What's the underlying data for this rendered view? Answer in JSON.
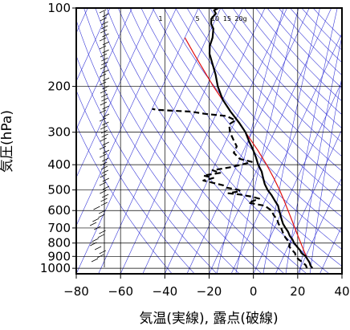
{
  "chart_data": {
    "type": "line",
    "subtype": "skew-T log-P sounding",
    "xlabel": "気温(実線), 露点(破線)",
    "ylabel": "気圧(hPa)",
    "xlim": [
      -80,
      40
    ],
    "ylim": [
      1050,
      100
    ],
    "y_scale": "log",
    "x_ticks": [
      -80,
      -60,
      -40,
      -20,
      0,
      20,
      40
    ],
    "x_tick_labels": [
      "−80",
      "−60",
      "−40",
      "−20",
      "0",
      "20",
      "40"
    ],
    "y_ticks": [
      100,
      200,
      300,
      400,
      500,
      600,
      700,
      800,
      900,
      1000
    ],
    "mixing_ratio_labels": [
      "1",
      "5",
      "10",
      "15",
      "20g"
    ],
    "grid": true,
    "colors": {
      "temperature": "#000000",
      "dewpoint": "#000000",
      "parcel": "#e01010",
      "adiabats": "#3a3ad8",
      "grid": "#000000"
    },
    "series": [
      {
        "style": "solid",
        "points": [
          [
            1000,
            25.5
          ],
          [
            975,
            24
          ],
          [
            950,
            23
          ],
          [
            925,
            21.5
          ],
          [
            900,
            20
          ],
          [
            875,
            17.5
          ],
          [
            850,
            16
          ],
          [
            825,
            14
          ],
          [
            800,
            12
          ],
          [
            775,
            10.5
          ],
          [
            750,
            8.5
          ],
          [
            725,
            7
          ],
          [
            700,
            5
          ],
          [
            675,
            3
          ],
          [
            650,
            1.5
          ],
          [
            600,
            -1.5
          ],
          [
            575,
            -3
          ],
          [
            550,
            -5.5
          ],
          [
            525,
            -8
          ],
          [
            500,
            -11
          ],
          [
            475,
            -13.5
          ],
          [
            450,
            -15.5
          ],
          [
            425,
            -17.5
          ],
          [
            400,
            -20.5
          ],
          [
            375,
            -23
          ],
          [
            350,
            -26
          ],
          [
            325,
            -29.5
          ],
          [
            300,
            -33
          ],
          [
            275,
            -38
          ],
          [
            250,
            -44
          ],
          [
            225,
            -50
          ],
          [
            200,
            -55
          ],
          [
            180,
            -58.5
          ],
          [
            160,
            -63
          ],
          [
            150,
            -65.5
          ],
          [
            140,
            -67
          ],
          [
            130,
            -67.5
          ],
          [
            120,
            -69
          ],
          [
            115,
            -71
          ],
          [
            110,
            -72
          ],
          [
            105,
            -71
          ],
          [
            102,
            -72.5
          ],
          [
            100,
            -71
          ]
        ]
      },
      {
        "style": "dashed",
        "points": [
          [
            1000,
            23
          ],
          [
            975,
            22
          ],
          [
            950,
            20
          ],
          [
            925,
            17.5
          ],
          [
            900,
            15.5
          ],
          [
            875,
            14.5
          ],
          [
            850,
            12.5
          ],
          [
            825,
            10.5
          ],
          [
            800,
            10
          ],
          [
            775,
            8
          ],
          [
            750,
            6
          ],
          [
            725,
            4.5
          ],
          [
            700,
            3
          ],
          [
            675,
            1
          ],
          [
            650,
            -0.5
          ],
          [
            625,
            -3
          ],
          [
            600,
            -5
          ],
          [
            575,
            -9
          ],
          [
            560,
            -17
          ],
          [
            540,
            -13
          ],
          [
            530,
            -17
          ],
          [
            520,
            -23
          ],
          [
            515,
            -28
          ],
          [
            505,
            -23
          ],
          [
            500,
            -24
          ],
          [
            490,
            -30
          ],
          [
            480,
            -32
          ],
          [
            470,
            -37
          ],
          [
            460,
            -42
          ],
          [
            450,
            -38
          ],
          [
            440,
            -43
          ],
          [
            430,
            -36
          ],
          [
            420,
            -40
          ],
          [
            410,
            -33
          ],
          [
            400,
            -28
          ],
          [
            390,
            -24
          ],
          [
            380,
            -30
          ],
          [
            360,
            -34
          ],
          [
            340,
            -34
          ],
          [
            320,
            -37
          ],
          [
            300,
            -40
          ],
          [
            280,
            -42
          ],
          [
            270,
            -40
          ],
          [
            260,
            -45
          ],
          [
            255,
            -55
          ],
          [
            250,
            -62
          ],
          [
            248,
            -70
          ],
          [
            246,
            -78
          ],
          [
            244,
            -80
          ]
        ]
      },
      {
        "style": "parcel",
        "points": [
          [
            1000,
            25.5
          ],
          [
            950,
            22.8
          ],
          [
            900,
            20.3
          ],
          [
            850,
            17.7
          ],
          [
            800,
            15
          ],
          [
            750,
            12.2
          ],
          [
            700,
            9.2
          ],
          [
            650,
            6
          ],
          [
            600,
            2.5
          ],
          [
            550,
            -1.3
          ],
          [
            500,
            -5.6
          ],
          [
            450,
            -10.7
          ],
          [
            400,
            -16.7
          ],
          [
            350,
            -24
          ],
          [
            300,
            -33
          ],
          [
            250,
            -44
          ],
          [
            200,
            -57
          ],
          [
            150,
            -72.5
          ],
          [
            130,
            -80
          ]
        ]
      }
    ]
  }
}
